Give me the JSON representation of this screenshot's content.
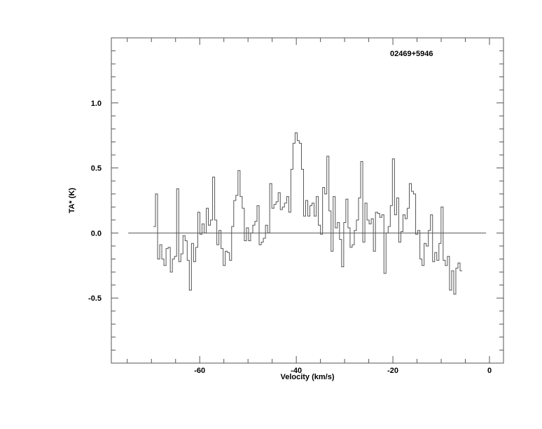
{
  "chart_data": {
    "type": "line",
    "style": "histogram-step",
    "title": "02469+5946",
    "xlabel": "Velocity (km/s)",
    "ylabel": "TA* (K)",
    "xlim": [
      -78.3,
      2.9
    ],
    "ylim": [
      -1.0,
      1.5
    ],
    "x_ticks": [
      -60,
      -40,
      -20,
      0
    ],
    "x_tick_labels": [
      "-60",
      "-40",
      "-20",
      "0"
    ],
    "y_ticks": [
      -0.5,
      0.0,
      0.5,
      1.0
    ],
    "y_tick_labels": [
      "-0.5",
      "0.0",
      "0.5",
      "1.0"
    ],
    "grid": false,
    "baseline": {
      "y": 0.0,
      "x_range": [
        -74.8,
        -0.7
      ]
    },
    "x_start": -69.6,
    "channel_width": 0.438,
    "values": [
      0.05,
      0.3,
      -0.2,
      -0.09,
      -0.2,
      -0.25,
      -0.12,
      -0.11,
      -0.3,
      -0.2,
      -0.18,
      0.34,
      -0.22,
      -0.16,
      -0.02,
      -0.06,
      -0.21,
      -0.44,
      -0.08,
      -0.22,
      -0.11,
      0.16,
      -0.01,
      0.07,
      0.0,
      0.19,
      0.06,
      0.1,
      0.43,
      0.1,
      -0.09,
      0.02,
      -0.12,
      -0.25,
      -0.14,
      -0.15,
      -0.21,
      0.05,
      0.25,
      0.29,
      0.48,
      0.28,
      0.19,
      -0.06,
      0.04,
      -0.06,
      0.0,
      0.06,
      0.09,
      0.21,
      -0.09,
      -0.07,
      -0.04,
      0.06,
      0.0,
      0.38,
      0.19,
      0.22,
      0.24,
      0.31,
      0.18,
      0.2,
      0.23,
      0.28,
      0.16,
      0.49,
      0.69,
      0.77,
      0.71,
      0.69,
      0.49,
      0.13,
      0.25,
      0.13,
      0.21,
      0.23,
      0.13,
      0.28,
      0.06,
      -0.01,
      0.35,
      0.3,
      0.59,
      0.17,
      -0.14,
      0.28,
      0.04,
      0.08,
      -0.05,
      -0.26,
      0.08,
      0.26,
      0.04,
      -0.11,
      -0.09,
      0.02,
      0.1,
      0.27,
      0.55,
      -0.07,
      0.23,
      0.1,
      0.07,
      0.11,
      -0.14,
      0.16,
      0.15,
      0.12,
      0.14,
      -0.31,
      0.0,
      0.05,
      0.21,
      0.57,
      0.14,
      0.27,
      -0.07,
      0.01,
      0.14,
      0.11,
      0.19,
      0.38,
      0.32,
      0.3,
      -0.01,
      0.02,
      -0.2,
      -0.25,
      -0.08,
      -0.1,
      0.02,
      0.14,
      -0.22,
      -0.15,
      -0.21,
      -0.08,
      0.2,
      -0.21,
      -0.25,
      -0.18,
      -0.44,
      -0.29,
      -0.47,
      -0.27,
      -0.23,
      -0.29
    ],
    "colors": {
      "line": "#555555",
      "axes": "#555555",
      "text": "#000000"
    }
  }
}
